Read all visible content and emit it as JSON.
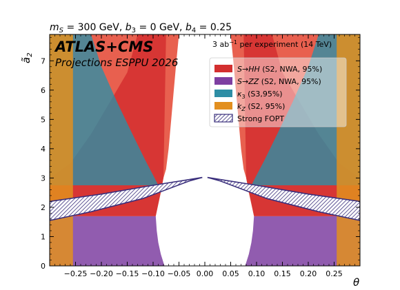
{
  "chart_data": {
    "type": "area",
    "title": "m_S = 300 GeV, b_3 = 0 GeV, b_4 = 0.25",
    "title_parts": {
      "ms": "m",
      "ms_sub": "S",
      "ms_val": " = 300 GeV, ",
      "b3": "b",
      "b3_sub": "3",
      "b3_val": " = 0 GeV, ",
      "b4": "b",
      "b4_sub": "4",
      "b4_val": " = 0.25"
    },
    "experiment_label": "ATLAS+CMS",
    "projection_label": "Projections ESPPU 2026",
    "luminosity_label": {
      "value": "3 ab",
      "sup": "−1",
      "rest": " per experiment (14 TeV)"
    },
    "xlabel": "θ",
    "ylabel": "ã",
    "ylabel_sub": "2",
    "xlim": [
      -0.3,
      0.3
    ],
    "ylim": [
      0,
      7.9
    ],
    "xticks": [
      -0.25,
      -0.2,
      -0.15,
      -0.1,
      -0.05,
      0.0,
      0.05,
      0.1,
      0.15,
      0.2,
      0.25
    ],
    "xtick_labels": [
      "−0.25",
      "−0.20",
      "−0.15",
      "−0.10",
      "−0.05",
      "0.00",
      "0.05",
      "0.10",
      "0.15",
      "0.20",
      "0.25"
    ],
    "yticks": [
      0,
      1,
      2,
      3,
      4,
      5,
      6,
      7
    ],
    "ytick_labels": [
      "0",
      "1",
      "2",
      "3",
      "4",
      "5",
      "6",
      "7"
    ],
    "legend_position": "top-right",
    "colors": {
      "red": "#d32f2f",
      "red_light": "#e8604f",
      "purple": "#7e3fa1",
      "teal": "#2e8ea5",
      "orange": "#e28f1f",
      "fopt": "#3a2f7c"
    },
    "legend": [
      {
        "key": "red",
        "label": "S→HH (S2, NWA, 95%)"
      },
      {
        "key": "purple",
        "label": "S→ZZ (S2, NWA, 95%)"
      },
      {
        "key": "teal",
        "label": "κ3 (S3,95%)"
      },
      {
        "key": "orange",
        "label": "kZ (S2, 95%)"
      },
      {
        "key": "fopt",
        "label": "Strong FOPT"
      }
    ],
    "regions": {
      "kz_excluded": {
        "theta_abs_min": 0.255
      },
      "kappa3_boundary_left": [
        [
          -0.22,
          7.9
        ],
        [
          -0.2,
          6.8
        ],
        [
          -0.17,
          5.6
        ],
        [
          -0.14,
          4.5
        ],
        [
          -0.115,
          3.6
        ],
        [
          -0.1,
          3.1
        ],
        [
          -0.09,
          2.75
        ]
      ],
      "kappa3_boundary_right": [
        [
          0.22,
          7.9
        ],
        [
          0.2,
          6.8
        ],
        [
          0.17,
          5.6
        ],
        [
          0.14,
          4.5
        ],
        [
          0.115,
          3.6
        ],
        [
          0.1,
          3.1
        ],
        [
          0.09,
          2.75
        ]
      ],
      "hh_inner_left": [
        [
          -0.05,
          7.9
        ],
        [
          -0.055,
          7.0
        ],
        [
          -0.06,
          6.0
        ],
        [
          -0.065,
          5.0
        ],
        [
          -0.07,
          4.0
        ],
        [
          -0.075,
          3.3
        ],
        [
          -0.08,
          3.0
        ],
        [
          -0.085,
          2.5
        ],
        [
          -0.095,
          1.7
        ]
      ],
      "hh_inner_right": [
        [
          0.05,
          7.9
        ],
        [
          0.055,
          7.0
        ],
        [
          0.06,
          6.0
        ],
        [
          0.065,
          5.0
        ],
        [
          0.07,
          4.0
        ],
        [
          0.075,
          3.3
        ],
        [
          0.08,
          3.0
        ],
        [
          0.085,
          2.5
        ],
        [
          0.095,
          1.7
        ]
      ],
      "hh_dark_boundary_left": [
        [
          -0.3,
          3.0
        ],
        [
          -0.26,
          3.5
        ],
        [
          -0.22,
          4.5
        ],
        [
          -0.18,
          5.7
        ],
        [
          -0.15,
          6.6
        ],
        [
          -0.13,
          7.9
        ]
      ],
      "hh_dark_boundary_right": [
        [
          0.3,
          3.0
        ],
        [
          0.26,
          3.5
        ],
        [
          0.22,
          4.5
        ],
        [
          0.18,
          5.7
        ],
        [
          0.15,
          6.6
        ],
        [
          0.13,
          7.9
        ]
      ],
      "zz_top_y": 1.7,
      "zz_inner_left": [
        [
          -0.095,
          1.7
        ],
        [
          -0.093,
          1.2
        ],
        [
          -0.09,
          0.8
        ],
        [
          -0.085,
          0.4
        ],
        [
          -0.078,
          0.0
        ]
      ],
      "zz_inner_right": [
        [
          0.095,
          1.7
        ],
        [
          0.093,
          1.2
        ],
        [
          0.09,
          0.8
        ],
        [
          0.085,
          0.4
        ],
        [
          0.078,
          0.0
        ]
      ],
      "fopt_band_left": [
        [
          -0.3,
          1.55
        ],
        [
          -0.3,
          2.2
        ],
        [
          -0.2,
          2.45
        ],
        [
          -0.1,
          2.75
        ],
        [
          -0.005,
          3.02
        ],
        [
          -0.03,
          2.9
        ],
        [
          -0.12,
          2.3
        ],
        [
          -0.22,
          1.85
        ]
      ],
      "fopt_band_right": [
        [
          0.3,
          1.55
        ],
        [
          0.3,
          2.2
        ],
        [
          0.2,
          2.45
        ],
        [
          0.1,
          2.75
        ],
        [
          0.005,
          3.02
        ],
        [
          0.03,
          2.9
        ],
        [
          0.12,
          2.3
        ],
        [
          0.22,
          1.85
        ]
      ]
    }
  }
}
